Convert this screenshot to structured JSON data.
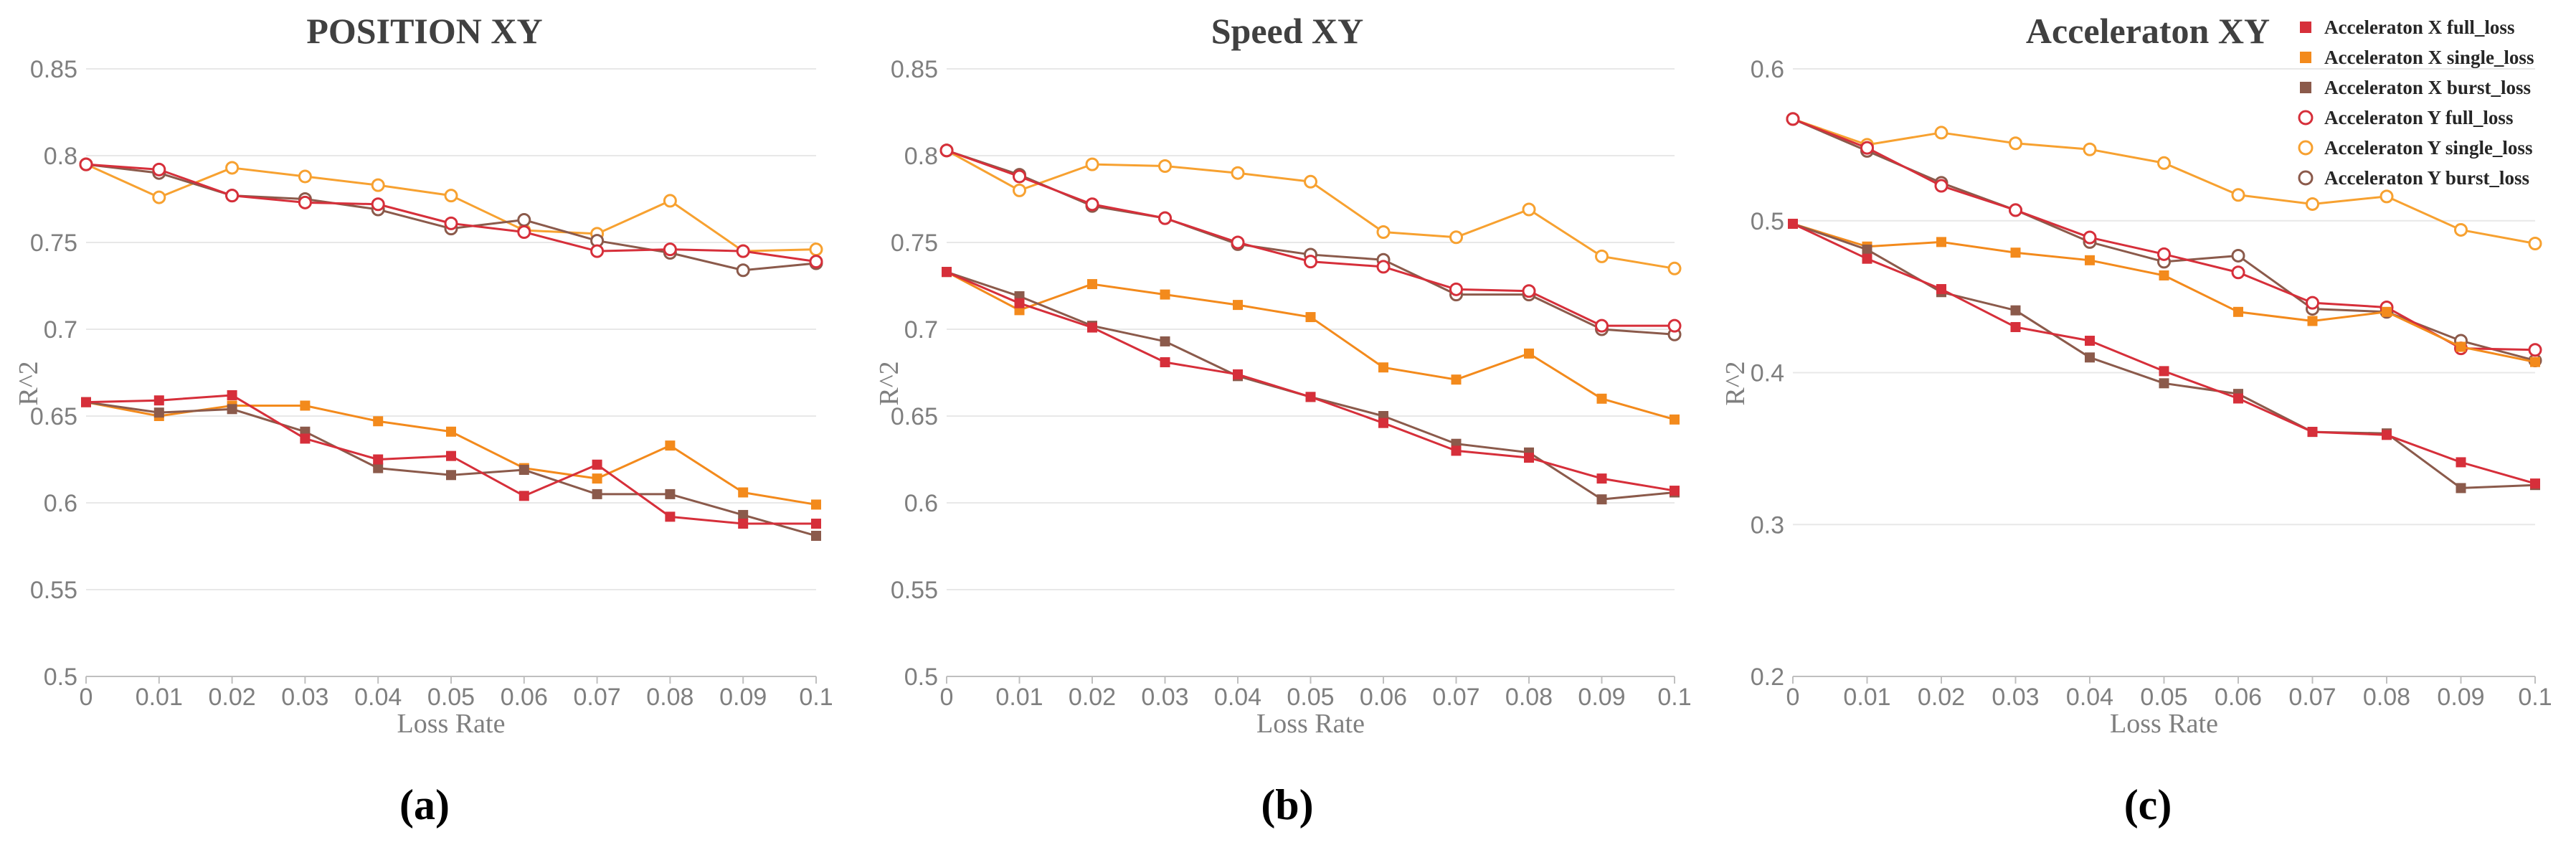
{
  "captions": [
    "(a)",
    "(b)",
    "(c)"
  ],
  "colors": {
    "Acceleraton X full_loss": "#d62f3a",
    "Acceleraton X single_loss": "#f38a1c",
    "Acceleraton X burst_loss": "#8b5a4b",
    "Acceleraton Y full_loss": "#d62f3a",
    "Acceleraton Y single_loss": "#f7a130",
    "Acceleraton Y burst_loss": "#8b5a4b"
  },
  "legend": {
    "position": "top-right",
    "entries": [
      {
        "label": "Acceleraton X full_loss",
        "marker": "square-filled"
      },
      {
        "label": "Acceleraton X single_loss",
        "marker": "square-filled"
      },
      {
        "label": "Acceleraton X burst_loss",
        "marker": "square-filled"
      },
      {
        "label": "Acceleraton Y full_loss",
        "marker": "circle-open"
      },
      {
        "label": "Acceleraton Y single_loss",
        "marker": "circle-open"
      },
      {
        "label": "Acceleraton Y burst_loss",
        "marker": "circle-open"
      }
    ]
  },
  "chart_data": [
    {
      "type": "line",
      "title": "POSITION XY",
      "xlabel": "Loss Rate",
      "ylabel": "R^2",
      "x": [
        0,
        0.01,
        0.02,
        0.03,
        0.04,
        0.05,
        0.06,
        0.07,
        0.08,
        0.09,
        0.1
      ],
      "x_tick_labels": [
        "0",
        "0.01",
        "0.02",
        "0.03",
        "0.04",
        "0.05",
        "0.06",
        "0.07",
        "0.08",
        "0.09",
        "0.1"
      ],
      "ylim": [
        0.5,
        0.85
      ],
      "y_ticks": [
        0.5,
        0.55,
        0.6,
        0.65,
        0.7,
        0.75,
        0.8,
        0.85
      ],
      "y_tick_labels": [
        "0.5",
        "0.55",
        "0.6",
        "0.65",
        "0.7",
        "0.75",
        "0.8",
        "0.85"
      ],
      "grid": true,
      "series": [
        {
          "name": "Acceleraton X full_loss",
          "values": [
            0.658,
            0.659,
            0.662,
            0.637,
            0.625,
            0.627,
            0.604,
            0.622,
            0.592,
            0.588,
            0.588
          ]
        },
        {
          "name": "Acceleraton X single_loss",
          "values": [
            0.658,
            0.65,
            0.656,
            0.656,
            0.647,
            0.641,
            0.62,
            0.614,
            0.633,
            0.606,
            0.599
          ]
        },
        {
          "name": "Acceleraton X burst_loss",
          "values": [
            0.658,
            0.652,
            0.654,
            0.641,
            0.62,
            0.616,
            0.619,
            0.605,
            0.605,
            0.593,
            0.581
          ]
        },
        {
          "name": "Acceleraton Y full_loss",
          "values": [
            0.795,
            0.792,
            0.777,
            0.773,
            0.772,
            0.761,
            0.756,
            0.745,
            0.746,
            0.745,
            0.739
          ]
        },
        {
          "name": "Acceleraton Y single_loss",
          "values": [
            0.795,
            0.776,
            0.793,
            0.788,
            0.783,
            0.777,
            0.757,
            0.755,
            0.774,
            0.745,
            0.746
          ]
        },
        {
          "name": "Acceleraton Y burst_loss",
          "values": [
            0.795,
            0.79,
            0.777,
            0.775,
            0.769,
            0.758,
            0.763,
            0.751,
            0.744,
            0.734,
            0.738
          ]
        }
      ]
    },
    {
      "type": "line",
      "title": "Speed XY",
      "xlabel": "Loss Rate",
      "ylabel": "R^2",
      "x": [
        0,
        0.01,
        0.02,
        0.03,
        0.04,
        0.05,
        0.06,
        0.07,
        0.08,
        0.09,
        0.1
      ],
      "x_tick_labels": [
        "0",
        "0.01",
        "0.02",
        "0.03",
        "0.04",
        "0.05",
        "0.06",
        "0.07",
        "0.08",
        "0.09",
        "0.1"
      ],
      "ylim": [
        0.5,
        0.85
      ],
      "y_ticks": [
        0.5,
        0.55,
        0.6,
        0.65,
        0.7,
        0.75,
        0.8,
        0.85
      ],
      "y_tick_labels": [
        "0.5",
        "0.55",
        "0.6",
        "0.65",
        "0.7",
        "0.75",
        "0.8",
        "0.85"
      ],
      "grid": true,
      "series": [
        {
          "name": "Acceleraton X full_loss",
          "values": [
            0.733,
            0.715,
            0.701,
            0.681,
            0.674,
            0.661,
            0.646,
            0.63,
            0.626,
            0.614,
            0.607
          ]
        },
        {
          "name": "Acceleraton X single_loss",
          "values": [
            0.733,
            0.711,
            0.726,
            0.72,
            0.714,
            0.707,
            0.678,
            0.671,
            0.686,
            0.66,
            0.648
          ]
        },
        {
          "name": "Acceleraton X burst_loss",
          "values": [
            0.733,
            0.719,
            0.702,
            0.693,
            0.673,
            0.661,
            0.65,
            0.634,
            0.629,
            0.602,
            0.606
          ]
        },
        {
          "name": "Acceleraton Y full_loss",
          "values": [
            0.803,
            0.788,
            0.772,
            0.764,
            0.75,
            0.739,
            0.736,
            0.723,
            0.722,
            0.702,
            0.702
          ]
        },
        {
          "name": "Acceleraton Y single_loss",
          "values": [
            0.803,
            0.78,
            0.795,
            0.794,
            0.79,
            0.785,
            0.756,
            0.753,
            0.769,
            0.742,
            0.735
          ]
        },
        {
          "name": "Acceleraton Y burst_loss",
          "values": [
            0.803,
            0.789,
            0.771,
            0.764,
            0.749,
            0.743,
            0.74,
            0.72,
            0.72,
            0.7,
            0.697
          ]
        }
      ]
    },
    {
      "type": "line",
      "title": "Acceleraton XY",
      "xlabel": "Loss Rate",
      "ylabel": "R^2",
      "x": [
        0,
        0.01,
        0.02,
        0.03,
        0.04,
        0.05,
        0.06,
        0.07,
        0.08,
        0.09,
        0.1
      ],
      "x_tick_labels": [
        "0",
        "0.01",
        "0.02",
        "0.03",
        "0.04",
        "0.05",
        "0.06",
        "0.07",
        "0.08",
        "0.09",
        "0.1"
      ],
      "ylim": [
        0.2,
        0.6
      ],
      "y_ticks": [
        0.2,
        0.3,
        0.4,
        0.5,
        0.6
      ],
      "y_tick_labels": [
        "0.2",
        "0.3",
        "0.4",
        "0.5",
        "0.6"
      ],
      "grid": true,
      "series": [
        {
          "name": "Acceleraton X full_loss",
          "values": [
            0.498,
            0.475,
            0.455,
            0.43,
            0.421,
            0.401,
            0.383,
            0.361,
            0.359,
            0.341,
            0.327
          ]
        },
        {
          "name": "Acceleraton X single_loss",
          "values": [
            0.498,
            0.483,
            0.486,
            0.479,
            0.474,
            0.464,
            0.44,
            0.434,
            0.44,
            0.417,
            0.407
          ]
        },
        {
          "name": "Acceleraton X burst_loss",
          "values": [
            0.498,
            0.481,
            0.453,
            0.441,
            0.41,
            0.393,
            0.386,
            0.361,
            0.36,
            0.324,
            0.326
          ]
        },
        {
          "name": "Acceleraton Y full_loss",
          "values": [
            0.567,
            0.548,
            0.523,
            0.507,
            0.489,
            0.478,
            0.466,
            0.446,
            0.443,
            0.416,
            0.415
          ]
        },
        {
          "name": "Acceleraton Y single_loss",
          "values": [
            0.567,
            0.55,
            0.558,
            0.551,
            0.547,
            0.538,
            0.517,
            0.511,
            0.516,
            0.494,
            0.485
          ]
        },
        {
          "name": "Acceleraton Y burst_loss",
          "values": [
            0.567,
            0.546,
            0.525,
            0.507,
            0.486,
            0.473,
            0.477,
            0.442,
            0.44,
            0.421,
            0.408
          ]
        }
      ]
    }
  ]
}
